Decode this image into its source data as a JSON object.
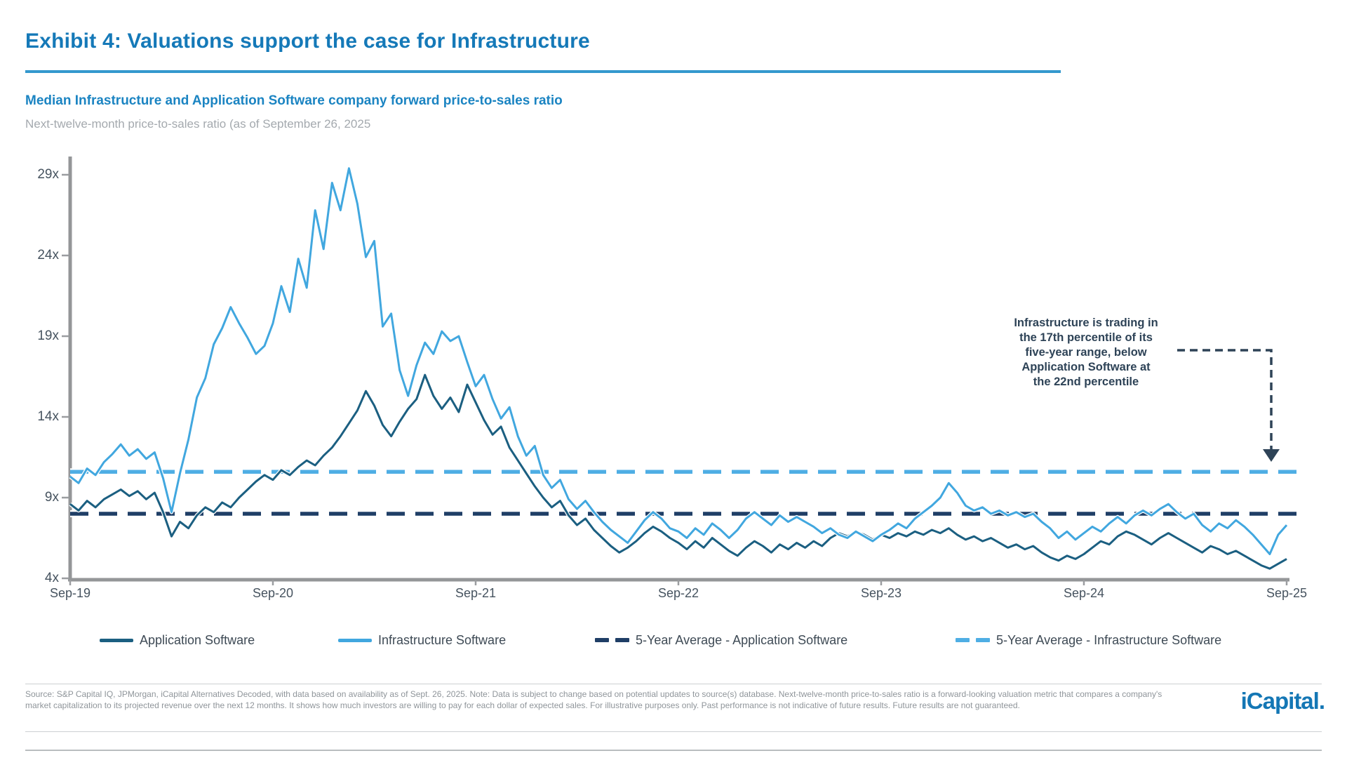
{
  "header": {
    "title": "Exhibit 4: Valuations support the case for Infrastructure",
    "subtitle": "Median Infrastructure and Application Software company forward price-to-sales ratio",
    "note": "Next-twelve-month price-to-sales ratio (as of September 26, 2025"
  },
  "annotation": {
    "text": "Infrastructure is trading in\nthe 17th percentile of its\nfive-year range, below\nApplication Software at\nthe 22nd percentile"
  },
  "legend": {
    "items": [
      {
        "label": "Application Software",
        "style": "solid",
        "color": "#1B5F81"
      },
      {
        "label": "Infrastructure Software",
        "style": "solid",
        "color": "#41A7DF"
      },
      {
        "label": "5-Year Average - Application Software",
        "style": "dashed",
        "color": "#1F3E66"
      },
      {
        "label": "5-Year Average - Infrastructure Software",
        "style": "dashed",
        "color": "#4FAEE4"
      }
    ]
  },
  "footer": {
    "line1": "Source: S&P Capital IQ, JPMorgan, iCapital Alternatives Decoded, with data based on availability as of Sept. 26, 2025. Note: Data is subject to change based on potential updates to source(s) database. Next-twelve-month price-to-sales ratio is a forward-looking valuation metric that compares a company's",
    "line2": "market capitalization to its projected revenue over the next 12 months. It shows how much investors are willing to pay for each dollar of expected sales. For illustrative purposes only. Past performance is not indicative of future results. Future results are not guaranteed.",
    "logo": "iCapital."
  },
  "chart_data": {
    "type": "line",
    "title": "Median Infrastructure and Application Software company forward price-to-sales ratio",
    "ylabel": "Next-twelve-month price-to-sales ratio",
    "x_unit": "months since Sep-2019",
    "x_step_months": 0.5,
    "x_start": "Sep-19",
    "x_end": "Sep-25",
    "ylim": [
      4,
      30.5
    ],
    "grid": false,
    "legend_position": "bottom",
    "y_ticks": [
      {
        "label": "29x",
        "value": 29
      },
      {
        "label": "24x",
        "value": 24
      },
      {
        "label": "19x",
        "value": 19
      },
      {
        "label": "14x",
        "value": 14
      },
      {
        "label": "9x",
        "value": 9
      },
      {
        "label": "4x",
        "value": 4
      }
    ],
    "x_ticks": [
      {
        "label": "Sep-19",
        "t": 0
      },
      {
        "label": "Sep-20",
        "t": 12
      },
      {
        "label": "Sep-21",
        "t": 24
      },
      {
        "label": "Sep-22",
        "t": 36
      },
      {
        "label": "Sep-23",
        "t": 48
      },
      {
        "label": "Sep-24",
        "t": 60
      },
      {
        "label": "Sep-25",
        "t": 72
      }
    ],
    "series": [
      {
        "name": "Application Software",
        "color": "#1B5F81",
        "values": [
          8.6,
          8.2,
          8.8,
          8.4,
          8.9,
          9.2,
          9.5,
          9.1,
          9.4,
          8.9,
          9.3,
          8.1,
          6.6,
          7.5,
          7.1,
          7.9,
          8.4,
          8.1,
          8.7,
          8.4,
          9.0,
          9.5,
          10.0,
          10.4,
          10.1,
          10.7,
          10.4,
          10.9,
          11.3,
          11.0,
          11.6,
          12.1,
          12.8,
          13.6,
          14.4,
          15.6,
          14.7,
          13.5,
          12.8,
          13.7,
          14.5,
          15.1,
          16.6,
          15.3,
          14.5,
          15.2,
          14.3,
          16.0,
          14.9,
          13.8,
          12.9,
          13.4,
          12.1,
          11.3,
          10.5,
          9.7,
          9.0,
          8.4,
          8.8,
          7.9,
          7.3,
          7.7,
          7.0,
          6.5,
          6.0,
          5.6,
          5.9,
          6.3,
          6.8,
          7.2,
          6.9,
          6.5,
          6.2,
          5.8,
          6.3,
          5.9,
          6.5,
          6.1,
          5.7,
          5.4,
          5.9,
          6.3,
          6.0,
          5.6,
          6.1,
          5.8,
          6.2,
          5.9,
          6.3,
          6.0,
          6.5,
          6.8,
          6.6,
          6.9,
          6.7,
          6.4,
          6.7,
          6.5,
          6.8,
          6.6,
          6.9,
          6.7,
          7.0,
          6.8,
          7.1,
          6.7,
          6.4,
          6.6,
          6.3,
          6.5,
          6.2,
          5.9,
          6.1,
          5.8,
          6.0,
          5.6,
          5.3,
          5.1,
          5.4,
          5.2,
          5.5,
          5.9,
          6.3,
          6.1,
          6.6,
          6.9,
          6.7,
          6.4,
          6.1,
          6.5,
          6.8,
          6.5,
          6.2,
          5.9,
          5.6,
          6.0,
          5.8,
          5.5,
          5.7,
          5.4,
          5.1,
          4.8,
          4.6,
          4.9,
          5.2
        ]
      },
      {
        "name": "Infrastructure Software",
        "color": "#41A7DF",
        "values": [
          10.3,
          9.9,
          10.8,
          10.4,
          11.2,
          11.7,
          12.3,
          11.6,
          12.0,
          11.4,
          11.8,
          10.2,
          8.1,
          10.5,
          12.6,
          15.2,
          16.4,
          18.5,
          19.5,
          20.8,
          19.8,
          18.9,
          17.9,
          18.4,
          19.8,
          22.1,
          20.5,
          23.8,
          22.0,
          26.8,
          24.4,
          28.5,
          26.8,
          29.4,
          27.2,
          23.9,
          24.9,
          19.6,
          20.4,
          16.9,
          15.3,
          17.2,
          18.6,
          17.9,
          19.3,
          18.7,
          19.0,
          17.4,
          15.9,
          16.6,
          15.1,
          13.9,
          14.6,
          12.8,
          11.6,
          12.2,
          10.4,
          9.6,
          10.1,
          8.9,
          8.3,
          8.8,
          8.1,
          7.5,
          7.0,
          6.6,
          6.2,
          6.9,
          7.6,
          8.1,
          7.7,
          7.1,
          6.9,
          6.5,
          7.1,
          6.7,
          7.4,
          7.0,
          6.5,
          7.0,
          7.7,
          8.1,
          7.7,
          7.3,
          7.9,
          7.5,
          7.8,
          7.5,
          7.2,
          6.8,
          7.1,
          6.7,
          6.5,
          6.9,
          6.6,
          6.3,
          6.7,
          7.0,
          7.4,
          7.1,
          7.7,
          8.1,
          8.5,
          9.0,
          9.9,
          9.3,
          8.5,
          8.2,
          8.4,
          8.0,
          8.2,
          7.9,
          8.1,
          7.8,
          8.0,
          7.5,
          7.1,
          6.5,
          6.9,
          6.4,
          6.8,
          7.2,
          6.9,
          7.4,
          7.8,
          7.4,
          7.9,
          8.2,
          7.9,
          8.3,
          8.6,
          8.1,
          7.7,
          8.0,
          7.3,
          6.9,
          7.4,
          7.1,
          7.6,
          7.2,
          6.7,
          6.1,
          5.5,
          6.7,
          7.3
        ]
      }
    ],
    "reference_lines": [
      {
        "name": "5-Year Average - Application Software",
        "value": 8.0,
        "color": "#1F3E66",
        "style": "dashed"
      },
      {
        "name": "5-Year Average - Infrastructure Software",
        "value": 10.6,
        "color": "#4FAEE4",
        "style": "dashed"
      }
    ]
  }
}
